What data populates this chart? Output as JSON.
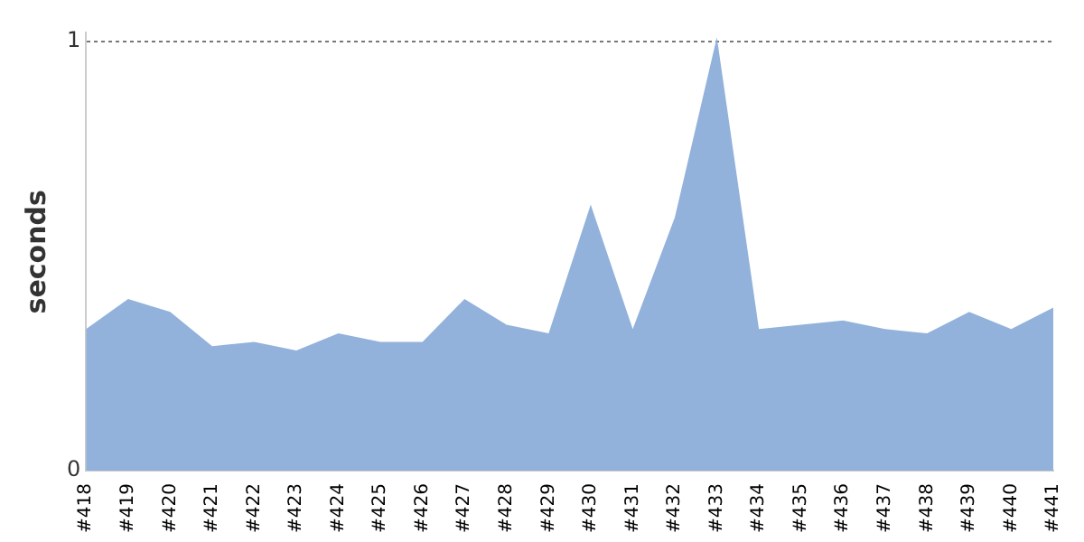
{
  "chart_data": {
    "type": "area",
    "ylabel": "seconds",
    "categories": [
      "#418",
      "#419",
      "#420",
      "#421",
      "#422",
      "#423",
      "#424",
      "#425",
      "#426",
      "#427",
      "#428",
      "#429",
      "#430",
      "#431",
      "#432",
      "#433",
      "#434",
      "#435",
      "#436",
      "#437",
      "#438",
      "#439",
      "#440",
      "#441"
    ],
    "series": [
      {
        "color": "#92b2db",
        "values": [
          0.33,
          0.4,
          0.37,
          0.29,
          0.3,
          0.28,
          0.32,
          0.3,
          0.3,
          0.4,
          0.34,
          0.32,
          0.62,
          0.33,
          0.59,
          1.01,
          0.33,
          0.34,
          0.35,
          0.33,
          0.32,
          0.37,
          0.33,
          0.38
        ]
      }
    ],
    "ylim": [
      0,
      1.02
    ],
    "yticks": [
      0,
      1
    ],
    "grid": "y",
    "line_style": "dotted",
    "legend": false,
    "marker": "none"
  }
}
